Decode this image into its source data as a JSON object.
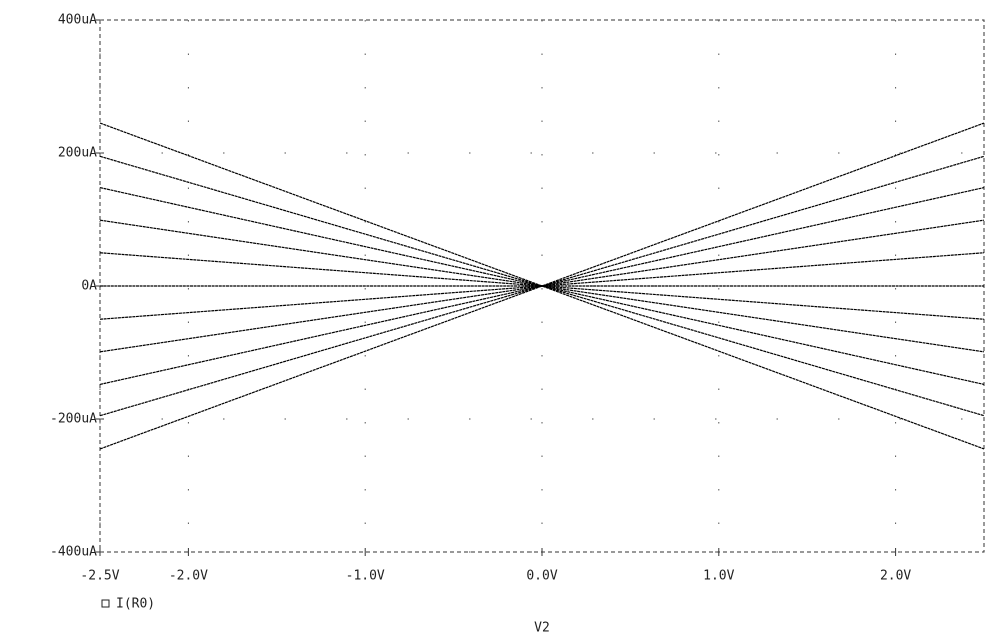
{
  "chart_data": {
    "type": "line",
    "xlabel": "V2",
    "x": [
      -2.5,
      0,
      2.5
    ],
    "series": [
      {
        "name": "I(R0)",
        "color": "#000000",
        "values": [
          245,
          0,
          -245
        ]
      },
      {
        "color": "#000000",
        "values": [
          195,
          0,
          -195
        ]
      },
      {
        "color": "#000000",
        "values": [
          148,
          0,
          -148
        ]
      },
      {
        "color": "#000000",
        "values": [
          99,
          0,
          -99
        ]
      },
      {
        "color": "#000000",
        "values": [
          50,
          0,
          -50
        ]
      },
      {
        "color": "#000000",
        "values": [
          0,
          0,
          0
        ]
      },
      {
        "color": "#000000",
        "values": [
          -50,
          0,
          50
        ]
      },
      {
        "color": "#000000",
        "values": [
          -99,
          0,
          99
        ]
      },
      {
        "color": "#000000",
        "values": [
          -148,
          0,
          148
        ]
      },
      {
        "color": "#000000",
        "values": [
          -195,
          0,
          195
        ]
      },
      {
        "color": "#000000",
        "values": [
          -245,
          0,
          245
        ]
      }
    ],
    "xlim": [
      -2.5,
      2.5
    ],
    "xticks": [
      {
        "value": -2.5,
        "label": "-2.5V"
      },
      {
        "value": -2,
        "label": "-2.0V"
      },
      {
        "value": -1,
        "label": "-1.0V"
      },
      {
        "value": 0,
        "label": "0.0V"
      },
      {
        "value": 1,
        "label": "1.0V"
      },
      {
        "value": 2,
        "label": "2.0V"
      }
    ],
    "ylim": [
      -400,
      400
    ],
    "yticks": [
      {
        "value": -400,
        "label": "-400uA"
      },
      {
        "value": -200,
        "label": "-200uA"
      },
      {
        "value": 0,
        "label": "0A"
      },
      {
        "value": 200,
        "label": "200uA"
      },
      {
        "value": 400,
        "label": "400uA"
      }
    ],
    "grid": true
  }
}
